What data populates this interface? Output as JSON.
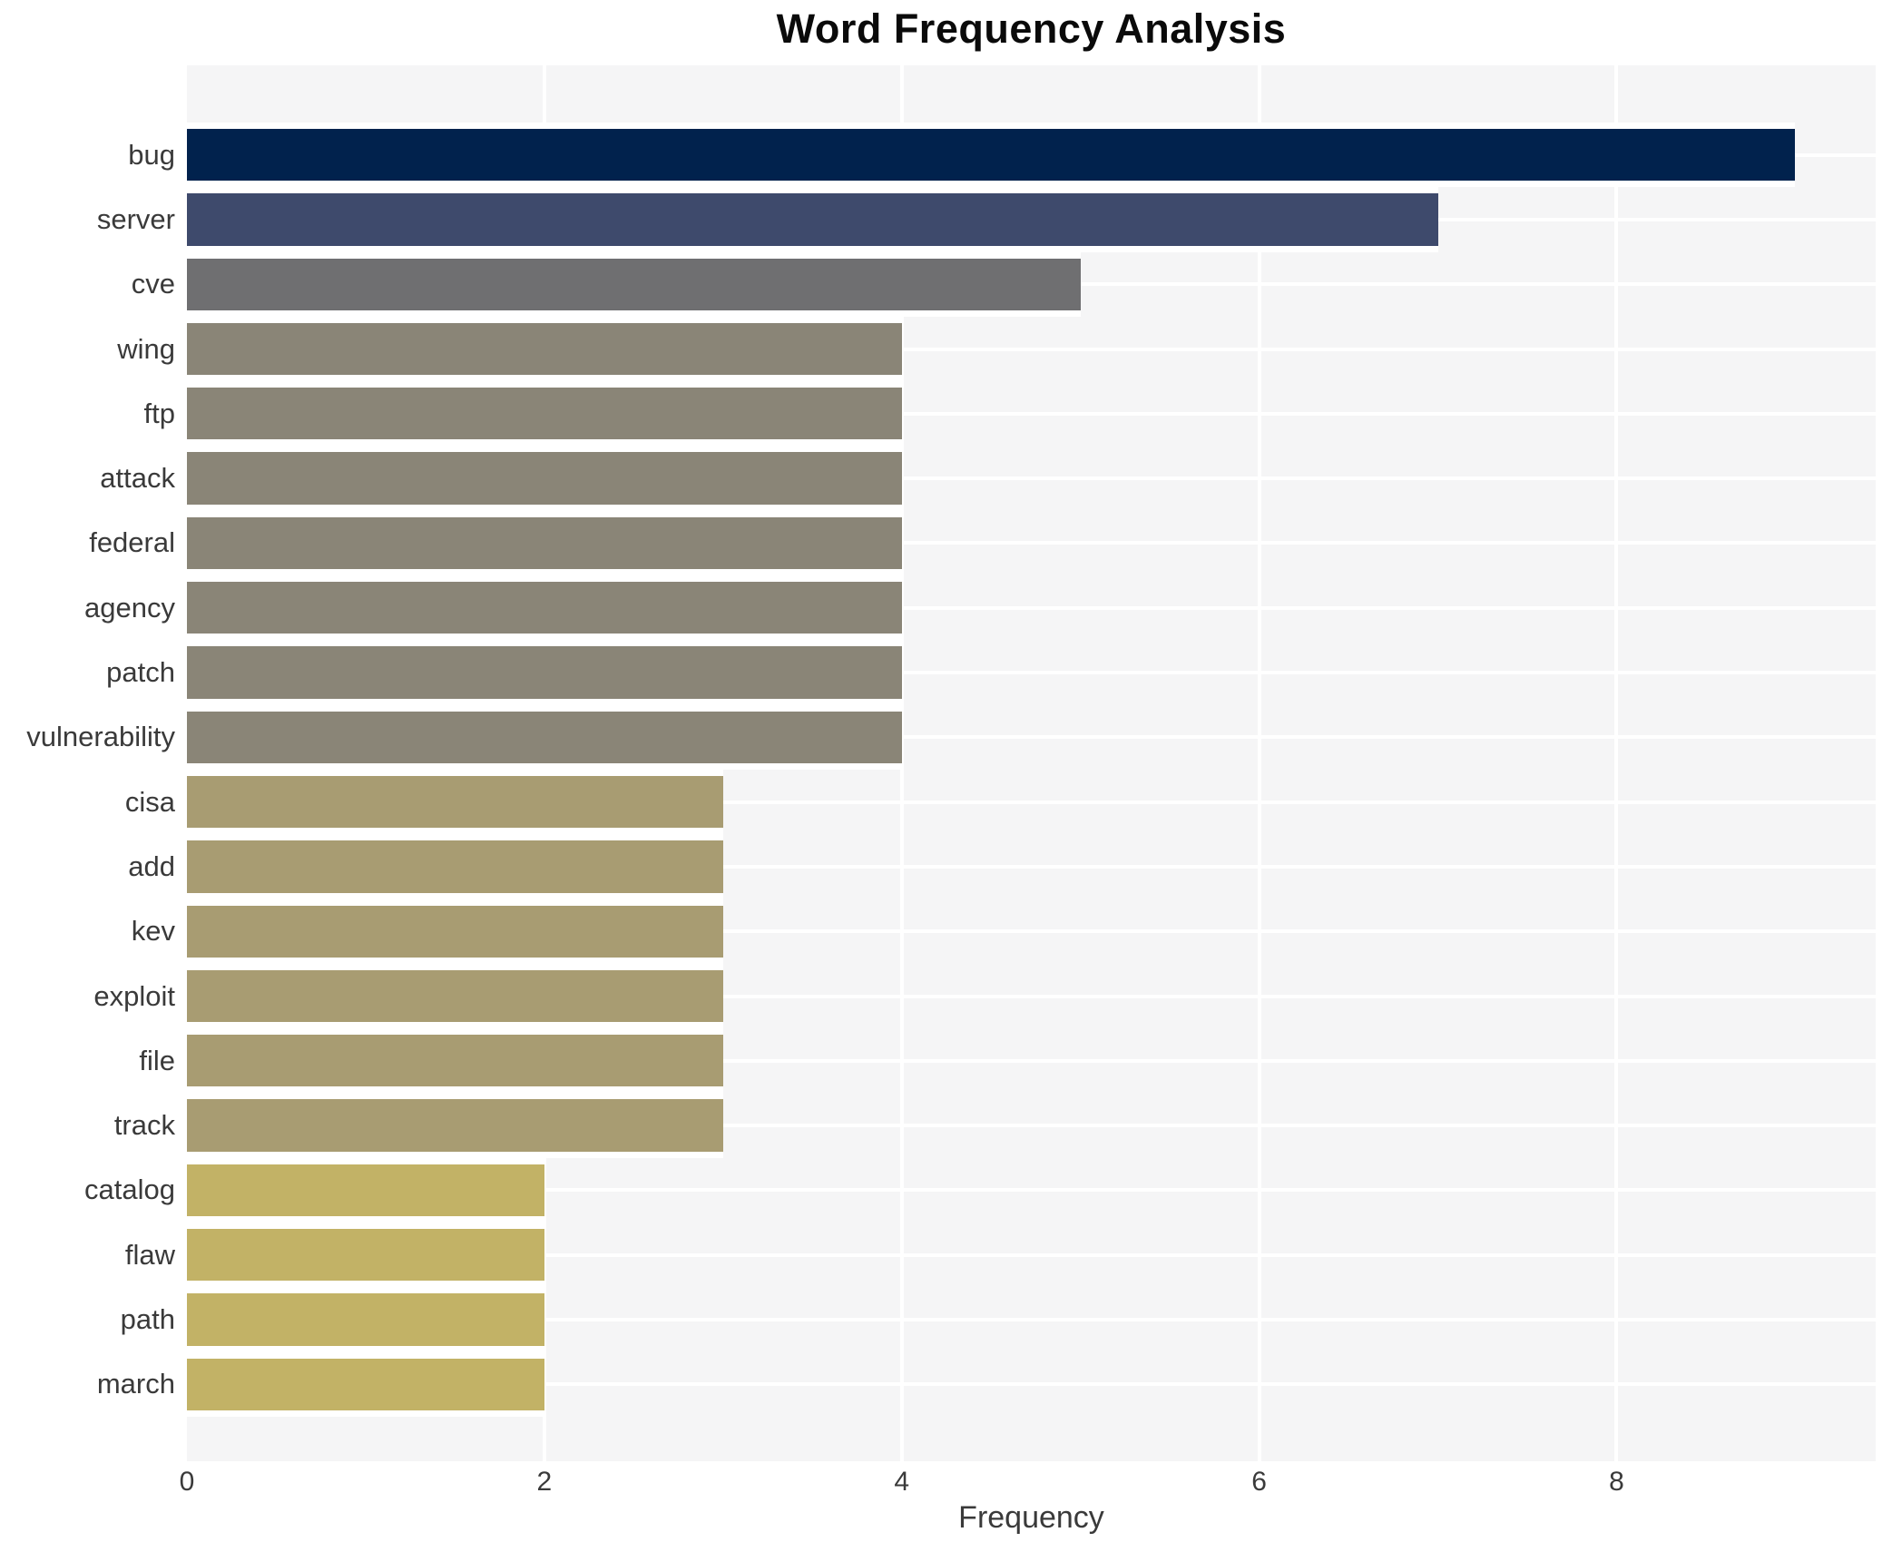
{
  "chart_data": {
    "type": "bar",
    "orientation": "horizontal",
    "title": "Word Frequency Analysis",
    "xlabel": "Frequency",
    "ylabel": "",
    "categories": [
      "bug",
      "server",
      "cve",
      "wing",
      "ftp",
      "attack",
      "federal",
      "agency",
      "patch",
      "vulnerability",
      "cisa",
      "add",
      "kev",
      "exploit",
      "file",
      "track",
      "catalog",
      "flaw",
      "path",
      "march"
    ],
    "values": [
      9,
      7,
      5,
      4,
      4,
      4,
      4,
      4,
      4,
      4,
      3,
      3,
      3,
      3,
      3,
      3,
      2,
      2,
      2,
      2
    ],
    "bar_colors": [
      "#01224d",
      "#3e4a6c",
      "#6f6f71",
      "#8a8577",
      "#8a8577",
      "#8a8577",
      "#8a8577",
      "#8a8577",
      "#8a8577",
      "#8a8577",
      "#a89c72",
      "#a89c72",
      "#a89c72",
      "#a89c72",
      "#a89c72",
      "#a89c72",
      "#c2b266",
      "#c2b266",
      "#c2b266",
      "#c2b266"
    ],
    "x_ticks": [
      0,
      2,
      4,
      6,
      8
    ],
    "xlim": [
      0,
      9.45
    ],
    "grid_vertical_ticks": [
      2,
      4,
      6,
      8
    ],
    "grid_horizontal": "row-centers",
    "grid_color": "#ffffff",
    "plot_background": "#f5f5f6",
    "page_background": "#ffffff",
    "text_color": "#3a3a3a",
    "legend": "none"
  }
}
